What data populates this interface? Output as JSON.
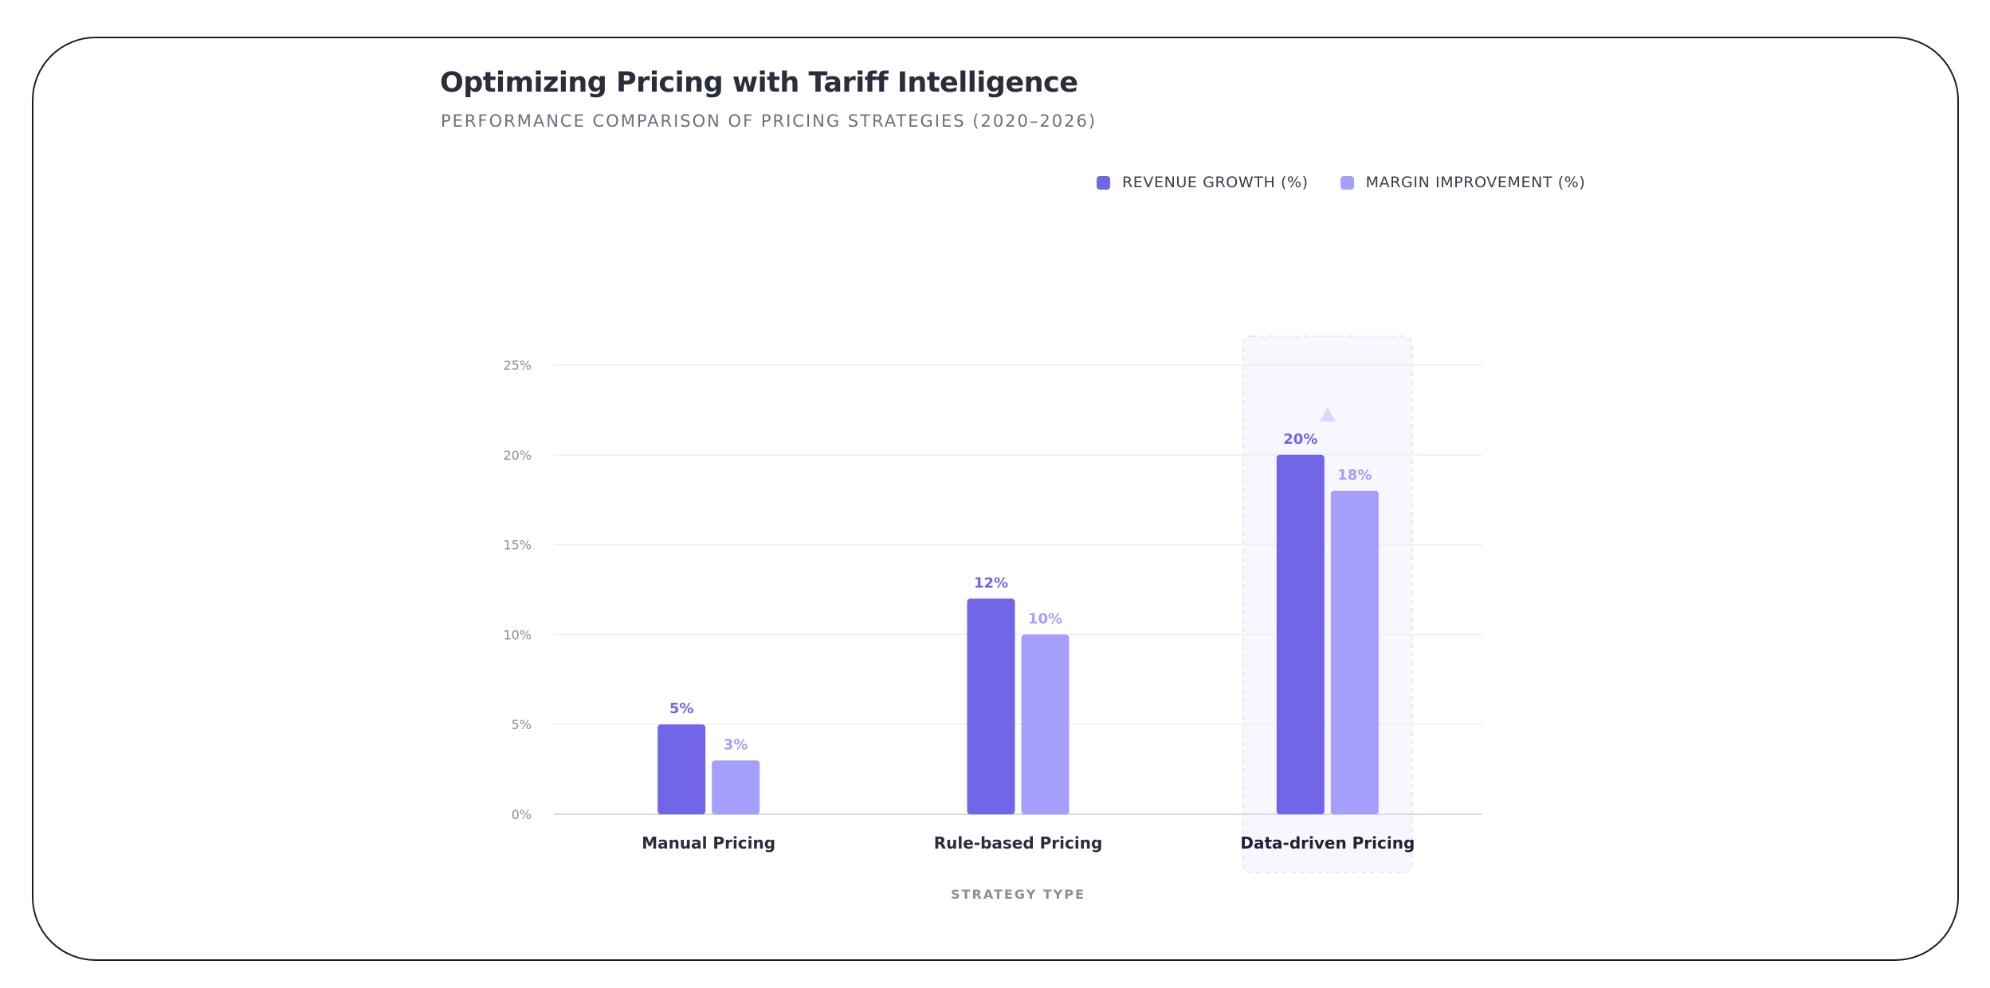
{
  "title": "Optimizing Pricing with Tariff Intelligence",
  "subtitle": "PERFORMANCE COMPARISON OF PRICING STRATEGIES (2020–2026)",
  "legend": [
    {
      "label": "REVENUE GROWTH (%)",
      "color": "#7165e8"
    },
    {
      "label": "MARGIN IMPROVEMENT (%)",
      "color": "#a59ffb"
    }
  ],
  "chart_data": {
    "type": "bar",
    "title": "Optimizing Pricing with Tariff Intelligence",
    "subtitle": "PERFORMANCE COMPARISON OF PRICING STRATEGIES (2020–2026)",
    "xlabel": "STRATEGY TYPE",
    "ylabel": "",
    "categories": [
      "Manual Pricing",
      "Rule-based Pricing",
      "Data-driven Pricing"
    ],
    "highlight_category": "Data-driven Pricing",
    "series": [
      {
        "name": "REVENUE GROWTH (%)",
        "values": [
          5,
          12,
          20
        ],
        "color": "#7165e8"
      },
      {
        "name": "MARGIN IMPROVEMENT (%)",
        "values": [
          3,
          10,
          18
        ],
        "color": "#a59ffb"
      }
    ],
    "data_labels": [
      [
        "5%",
        "12%",
        "20%"
      ],
      [
        "3%",
        "10%",
        "18%"
      ]
    ],
    "ylim": [
      0,
      25
    ],
    "yticks": [
      0,
      5,
      10,
      15,
      20,
      25
    ],
    "ytick_labels": [
      "0%",
      "5%",
      "10%",
      "15%",
      "20%",
      "25%"
    ],
    "grid": true,
    "legend_position": "top-right"
  }
}
